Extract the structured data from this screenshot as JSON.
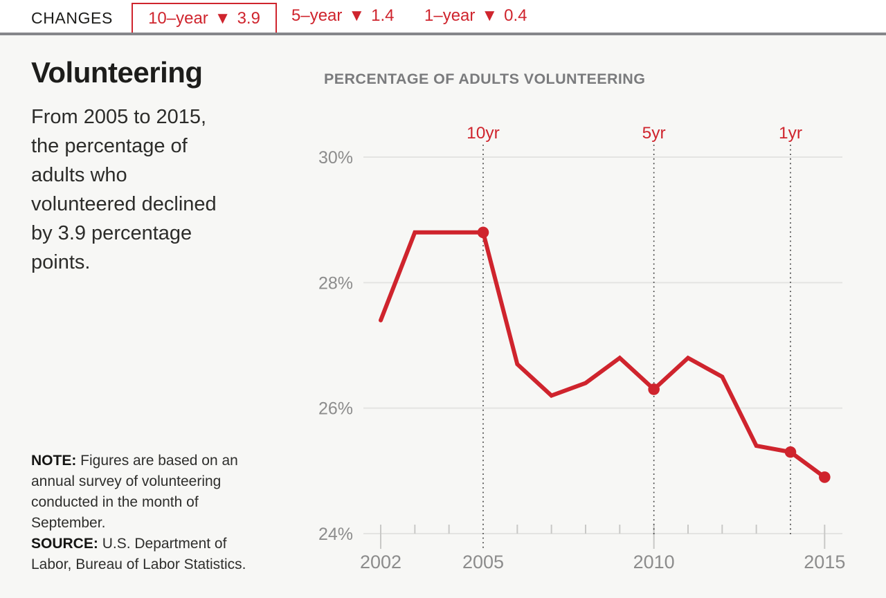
{
  "header": {
    "label": "CHANGES",
    "items": [
      {
        "period": "10–year",
        "arrow": "▼",
        "value": "3.9",
        "highlighted": true
      },
      {
        "period": "5–year",
        "arrow": "▼",
        "value": "1.4",
        "highlighted": false
      },
      {
        "period": "1–year",
        "arrow": "▼",
        "value": "0.4",
        "highlighted": false
      }
    ]
  },
  "panel": {
    "title": "Volunteering",
    "description": "From 2005 to 2015,\nthe percentage of\nadults who\nvolunteered declined\nby 3.9 percentage\npoints.",
    "note_label": "NOTE:",
    "note": "Figures are based on an\nannual survey of volunteering\nconducted in the month of\nSeptember.",
    "source_label": "SOURCE:",
    "source": "U.S. Department of\nLabor, Bureau of Labor Statistics."
  },
  "chart_data": {
    "type": "line",
    "title": "PERCENTAGE OF ADULTS VOLUNTEERING",
    "x": [
      2002,
      2003,
      2004,
      2005,
      2006,
      2007,
      2008,
      2009,
      2010,
      2011,
      2012,
      2013,
      2014,
      2015
    ],
    "series": [
      {
        "name": "Percentage of adults volunteering",
        "values": [
          27.4,
          28.8,
          28.8,
          28.8,
          26.7,
          26.2,
          26.4,
          26.8,
          26.3,
          26.8,
          26.5,
          25.4,
          25.3,
          24.9
        ]
      }
    ],
    "markers": [
      2005,
      2010,
      2014,
      2015
    ],
    "reference_lines": [
      {
        "x": 2005,
        "label": "10yr"
      },
      {
        "x": 2010,
        "label": "5yr"
      },
      {
        "x": 2014,
        "label": "1yr"
      }
    ],
    "yticks": [
      24,
      26,
      28,
      30
    ],
    "ytick_labels": [
      "24%",
      "26%",
      "28%",
      "30%"
    ],
    "xticks": [
      2002,
      2005,
      2010,
      2015
    ],
    "xtick_labels": [
      "2002",
      "2005",
      "2010",
      "2015"
    ],
    "ylim": [
      24,
      30.6
    ],
    "xlabel": "",
    "ylabel": "",
    "grid": true,
    "legend": "none",
    "line_color": "#cf242d"
  },
  "colors": {
    "accent_red": "#cf242d",
    "page_background": "#f7f7f5",
    "header_background": "#ffffff",
    "divider_gray": "#85868a",
    "chart_title_gray": "#7a7b7d",
    "axis_label_gray": "#8c8c8c",
    "gridline": "#e4e4e2",
    "tick": "#c8c8c6",
    "reference_line": "#3a3a3a",
    "text_dark": "#1d1d1b"
  }
}
